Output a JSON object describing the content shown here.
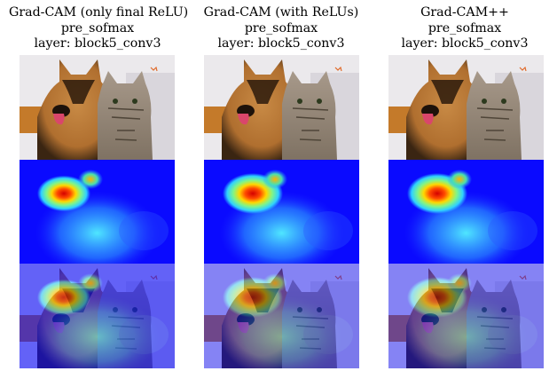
{
  "panels": [
    {
      "title_line1": "Grad-CAM (only final ReLU)",
      "title_line2": "pre_sofmax",
      "title_line3": "layer: block5_conv3",
      "rows": [
        "original-image",
        "heatmap",
        "overlay"
      ]
    },
    {
      "title_line1": "Grad-CAM (with ReLUs)",
      "title_line2": "pre_sofmax",
      "title_line3": "layer: block5_conv3",
      "rows": [
        "original-image",
        "heatmap",
        "overlay"
      ]
    },
    {
      "title_line1": "Grad-CAM++",
      "title_line2": "pre_sofmax",
      "title_line3": "layer: block5_conv3",
      "rows": [
        "original-image",
        "heatmap",
        "overlay"
      ]
    }
  ],
  "colors": {
    "heatmap_low": "#0a0aff",
    "heatmap_mid": "#2fd2ff",
    "heatmap_high": "#d40000",
    "dog_fur": "#b06f2f",
    "cat_fur": "#9a8b79",
    "background_wall": "#ebe9ec"
  }
}
